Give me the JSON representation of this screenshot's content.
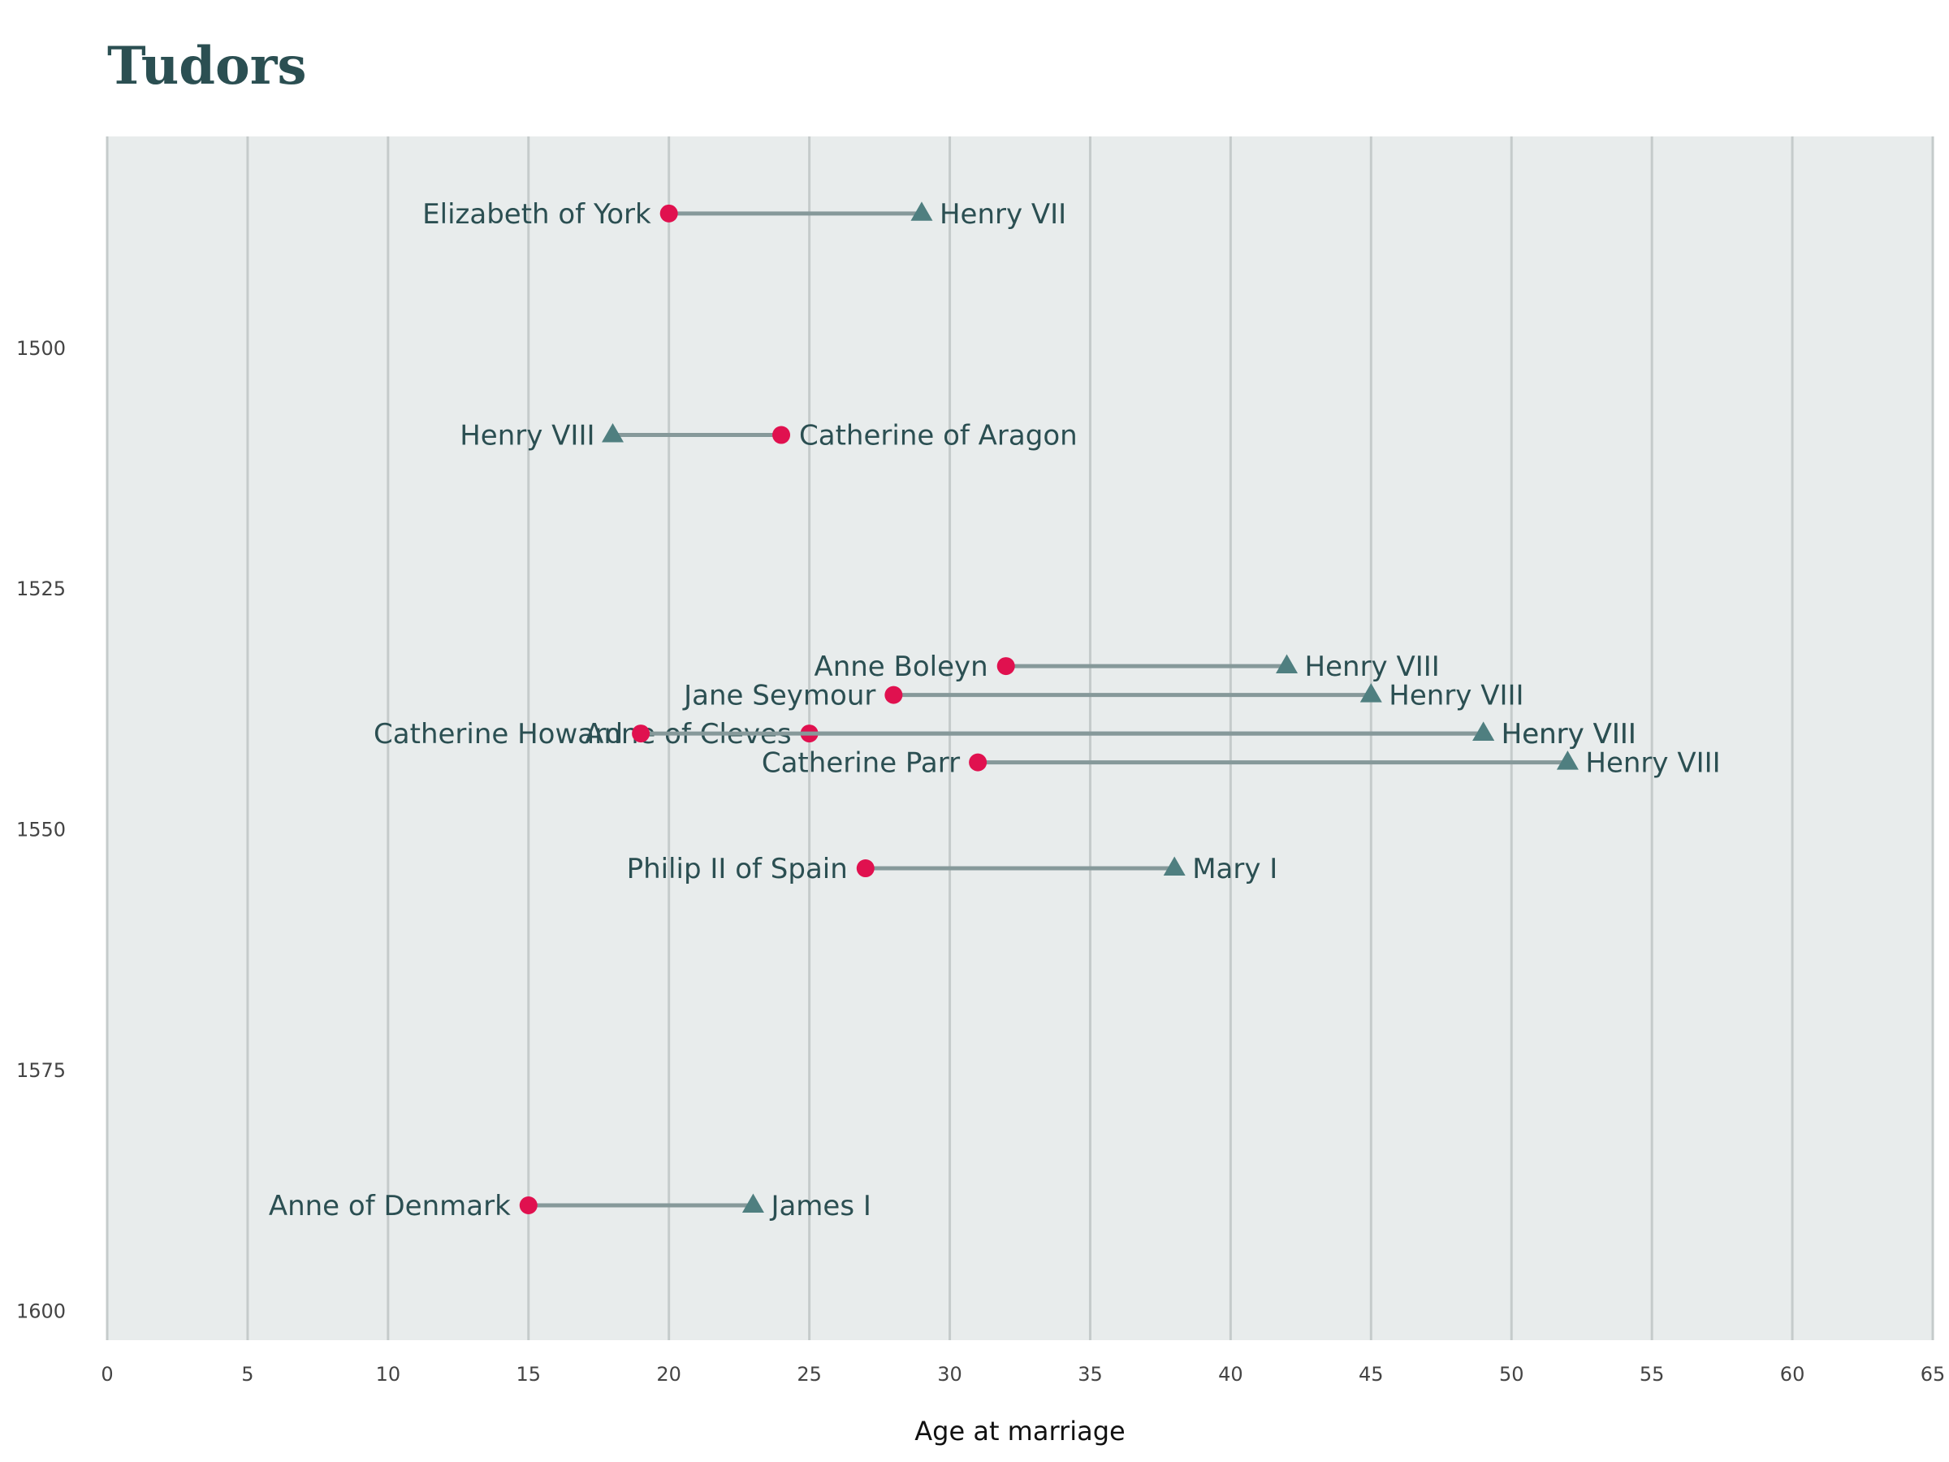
{
  "chart_data": {
    "type": "dumbbell",
    "title": "Tudors",
    "xlabel": "Age at marriage",
    "ylabel": "",
    "xlim": [
      0,
      65
    ],
    "ylim": [
      1478,
      1603
    ],
    "x_ticks": [
      "0",
      "5",
      "10",
      "15",
      "20",
      "25",
      "30",
      "35",
      "40",
      "45",
      "50",
      "55",
      "60",
      "65"
    ],
    "y_ticks": [
      "1500",
      "1525",
      "1550",
      "1575",
      "1600"
    ],
    "grid": "vertical",
    "colors": {
      "female_marker": "#e0114f",
      "male_marker": "#4f7f80",
      "connector": "#86999a",
      "panel_bg": "#e8ecec",
      "gridline": "#c5cbcb",
      "label_text": "#2b4f52"
    },
    "marriages": [
      {
        "year": 1486,
        "female": {
          "name": "Elizabeth of York",
          "age": 20
        },
        "male": {
          "name": "Henry VII",
          "age": 29
        }
      },
      {
        "year": 1509,
        "female": {
          "name": "Catherine of Aragon",
          "age": 24
        },
        "male": {
          "name": "Henry VIII",
          "age": 18
        }
      },
      {
        "year": 1533,
        "female": {
          "name": "Anne Boleyn",
          "age": 32
        },
        "male": {
          "name": "Henry VIII",
          "age": 42
        }
      },
      {
        "year": 1536,
        "female": {
          "name": "Jane Seymour",
          "age": 28
        },
        "male": {
          "name": "Henry VIII",
          "age": 45
        }
      },
      {
        "year": 1540,
        "female": {
          "name": "Anne of Cleves",
          "age": 25
        },
        "male": {
          "name": "Henry VIII",
          "age": 49
        }
      },
      {
        "year": 1540,
        "female": {
          "name": "Catherine Howard",
          "age": 19
        },
        "male": {
          "name": "Henry VIII",
          "age": 49
        }
      },
      {
        "year": 1543,
        "female": {
          "name": "Catherine Parr",
          "age": 31
        },
        "male": {
          "name": "Henry VIII",
          "age": 52
        }
      },
      {
        "year": 1554,
        "female": {
          "name": "Philip II of Spain",
          "age": 27
        },
        "male": {
          "name": "Mary I",
          "age": 38
        }
      },
      {
        "year": 1589,
        "female": {
          "name": "Anne of Denmark",
          "age": 15
        },
        "male": {
          "name": "James I",
          "age": 23
        }
      }
    ]
  }
}
